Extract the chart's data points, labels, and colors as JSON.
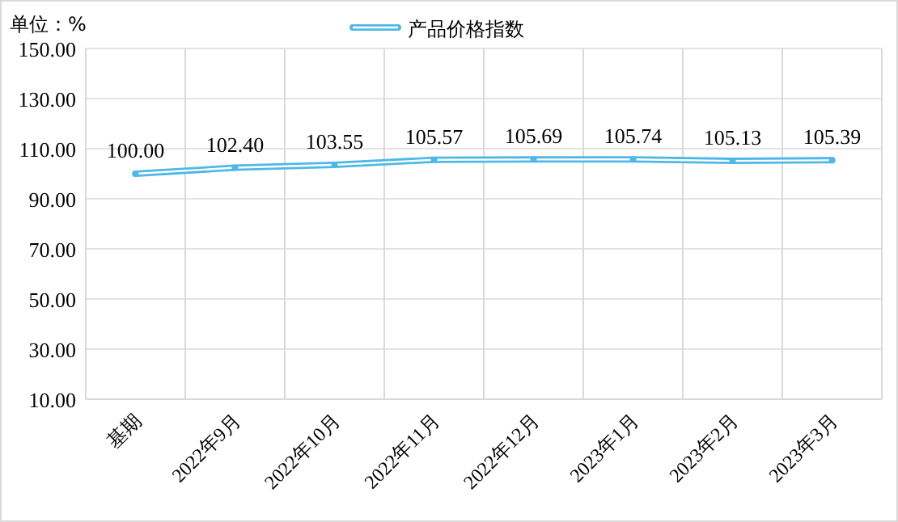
{
  "chart_data": {
    "type": "line",
    "ylabel": "单位：%",
    "categories": [
      "基期",
      "2022年9月",
      "2022年10月",
      "2022年11月",
      "2022年12月",
      "2023年1月",
      "2023年2月",
      "2023年3月"
    ],
    "series": [
      {
        "name": "产品价格指数",
        "color": "#4fb8e6",
        "values": [
          100.0,
          102.4,
          103.55,
          105.57,
          105.69,
          105.74,
          105.13,
          105.39
        ],
        "value_labels": [
          "100.00",
          "102.40",
          "103.55",
          "105.57",
          "105.69",
          "105.74",
          "105.13",
          "105.39"
        ]
      }
    ],
    "ylim": [
      10,
      150
    ],
    "yticks": [
      {
        "value": 10,
        "label": "10.00"
      },
      {
        "value": 30,
        "label": "30.00"
      },
      {
        "value": 50,
        "label": "50.00"
      },
      {
        "value": 70,
        "label": "70.00"
      },
      {
        "value": 90,
        "label": "90.00"
      },
      {
        "value": 110,
        "label": "110.00"
      },
      {
        "value": 130,
        "label": "130.00"
      },
      {
        "value": 150,
        "label": "150.00"
      }
    ],
    "grid": true,
    "legend": "top",
    "marker": "circle",
    "line_style": "solid"
  }
}
